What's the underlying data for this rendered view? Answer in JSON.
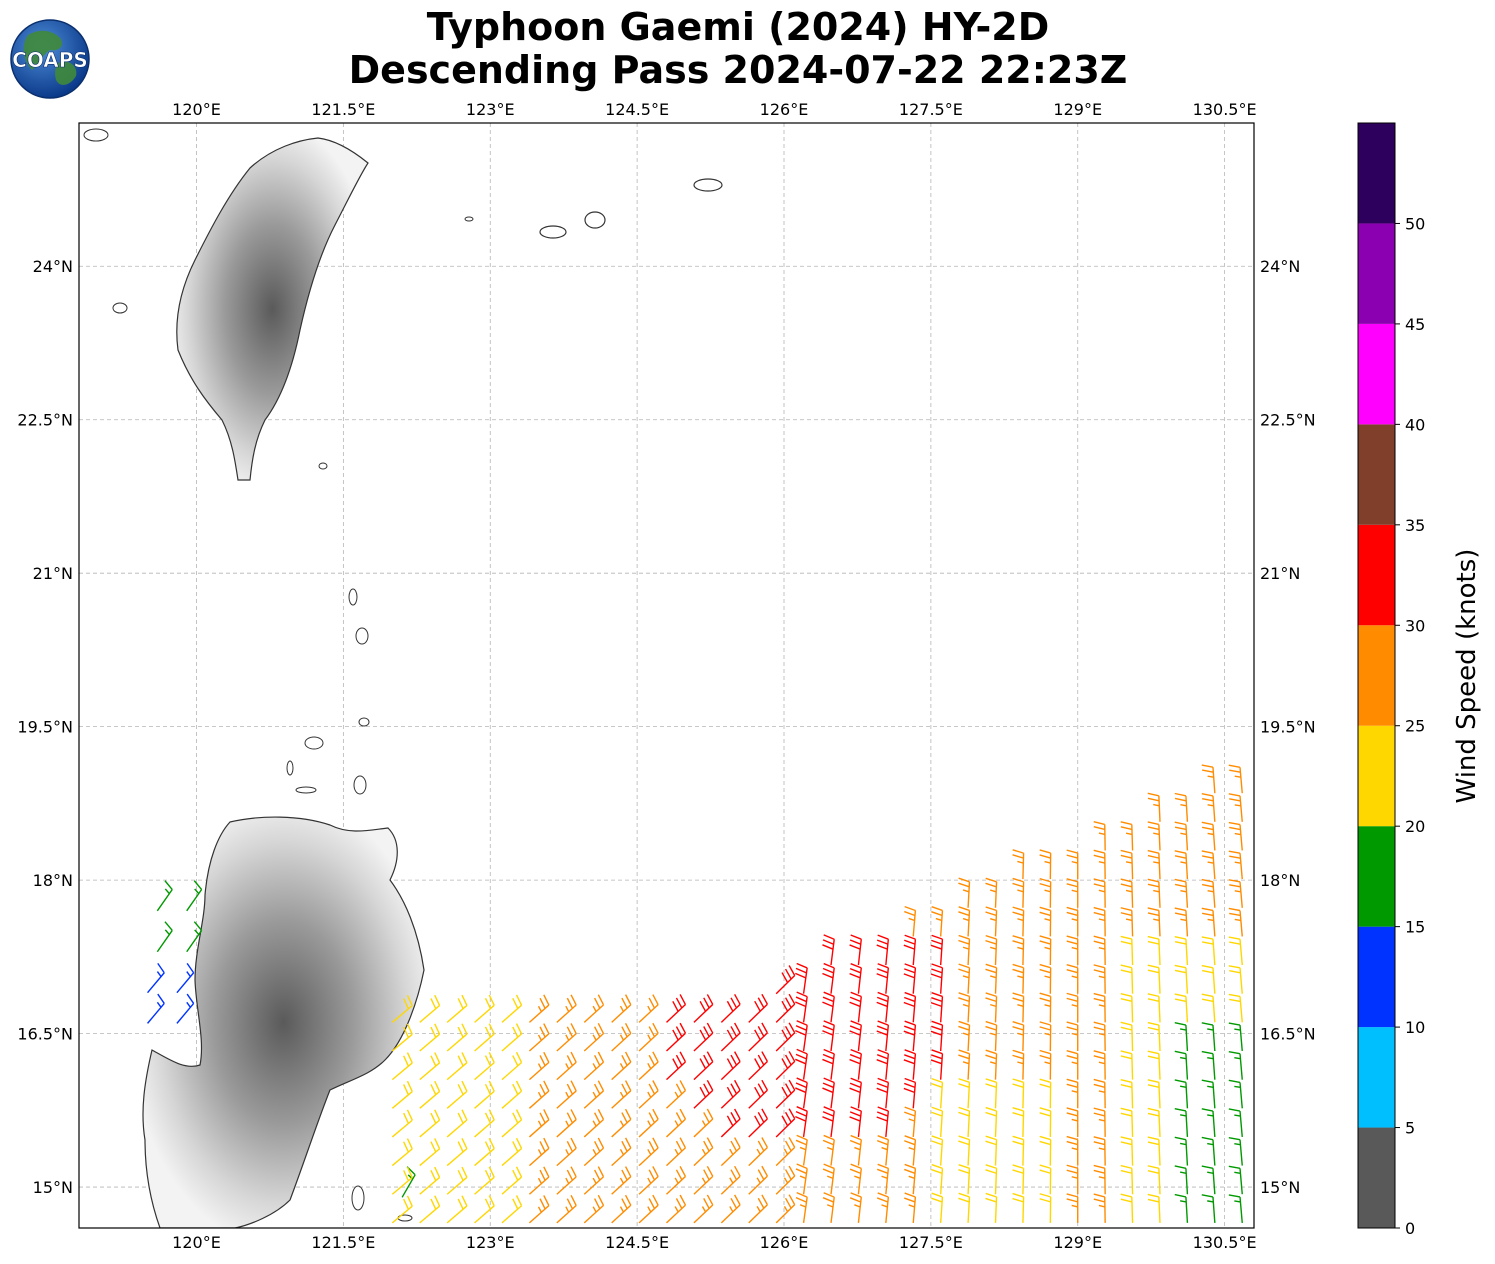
{
  "header": {
    "logo_text": "COAPS",
    "title_line1": "Typhoon Gaemi (2024) HY-2D",
    "title_line2": "Descending Pass 2024-07-22 22:23Z"
  },
  "chart_data": {
    "type": "map-wind-barbs",
    "title": "Typhoon Gaemi (2024) HY-2D",
    "subtitle": "Descending Pass 2024-07-22 22:23Z",
    "lon_range": [
      118.8,
      130.8
    ],
    "lat_range": [
      14.6,
      25.4
    ],
    "lon_ticks": [
      120,
      121.5,
      123,
      124.5,
      126,
      127.5,
      129,
      130.5
    ],
    "lat_ticks": [
      15,
      16.5,
      18,
      19.5,
      21,
      22.5,
      24
    ],
    "lon_tick_labels": [
      "120°E",
      "121.5°E",
      "123°E",
      "124.5°E",
      "126°E",
      "127.5°E",
      "129°E",
      "130.5°E"
    ],
    "lat_tick_labels": [
      "15°N",
      "16.5°N",
      "18°N",
      "19.5°N",
      "21°N",
      "22.5°N",
      "24°N"
    ],
    "grid": true,
    "colorbar": {
      "label": "Wind Speed (knots)",
      "ticks": [
        0,
        5,
        10,
        15,
        20,
        25,
        30,
        35,
        40,
        45,
        50
      ],
      "bins": [
        {
          "min": 0,
          "max": 5,
          "color": "#595959"
        },
        {
          "min": 5,
          "max": 10,
          "color": "#00bfff"
        },
        {
          "min": 10,
          "max": 15,
          "color": "#0033ff"
        },
        {
          "min": 15,
          "max": 20,
          "color": "#009900"
        },
        {
          "min": 20,
          "max": 25,
          "color": "#ffd700"
        },
        {
          "min": 25,
          "max": 30,
          "color": "#ff8c00"
        },
        {
          "min": 30,
          "max": 35,
          "color": "#ff0000"
        },
        {
          "min": 35,
          "max": 40,
          "color": "#7f3f2a"
        },
        {
          "min": 40,
          "max": 45,
          "color": "#ff00ff"
        },
        {
          "min": 45,
          "max": 50,
          "color": "#8b00b0"
        },
        {
          "min": 50,
          "max": 55,
          "color": "#2e005e"
        }
      ]
    },
    "wind_barbs": {
      "description_note": null,
      "groups": [
        {
          "lon": 119.6,
          "lat": 17.7,
          "speed": 17,
          "dir": 55
        },
        {
          "lon": 119.9,
          "lat": 17.7,
          "speed": 17,
          "dir": 55
        },
        {
          "lon": 119.6,
          "lat": 17.3,
          "speed": 17,
          "dir": 55
        },
        {
          "lon": 119.9,
          "lat": 17.3,
          "speed": 17,
          "dir": 55
        },
        {
          "lon": 119.5,
          "lat": 16.9,
          "speed": 13,
          "dir": 50
        },
        {
          "lon": 119.8,
          "lat": 16.9,
          "speed": 13,
          "dir": 50
        },
        {
          "lon": 119.5,
          "lat": 16.6,
          "speed": 13,
          "dir": 50
        },
        {
          "lon": 119.8,
          "lat": 16.6,
          "speed": 13,
          "dir": 50
        },
        {
          "lon": 122.1,
          "lat": 14.9,
          "speed": 17,
          "dir": 60
        }
      ]
    }
  }
}
